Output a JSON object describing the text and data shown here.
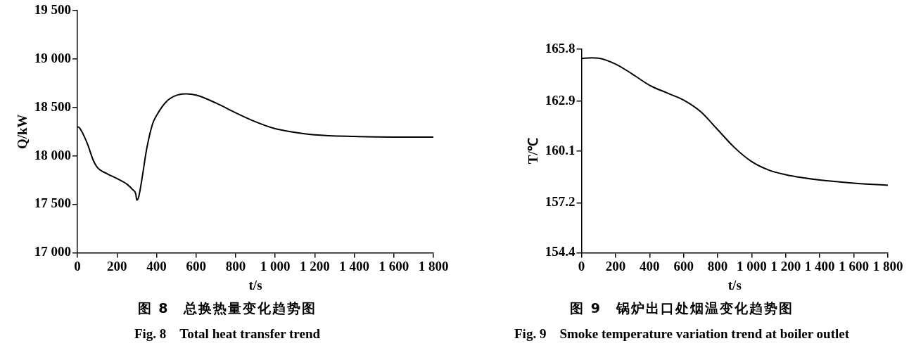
{
  "chart_data": [
    {
      "type": "line",
      "title": "图 8　总换热量变化趋势图",
      "subtitle": "Fig. 8　Total heat transfer trend",
      "xlabel": "t/s",
      "ylabel": "Q/kW",
      "x": [
        0,
        10,
        50,
        80,
        100,
        150,
        200,
        250,
        280,
        295,
        300,
        310,
        330,
        350,
        380,
        400,
        450,
        500,
        550,
        600,
        700,
        800,
        900,
        1000,
        1100,
        1200,
        1400,
        1600,
        1800
      ],
      "series": [
        {
          "color": "#000000",
          "values": [
            18300,
            18290,
            18127,
            17954,
            17882,
            17815,
            17766,
            17708,
            17650,
            17607,
            17543,
            17578,
            17810,
            18070,
            18330,
            18416,
            18560,
            18624,
            18639,
            18627,
            18546,
            18445,
            18352,
            18280,
            18243,
            18217,
            18200,
            18194,
            18194
          ]
        }
      ],
      "xlim": [
        0,
        1800
      ],
      "xticks": [
        0,
        200,
        400,
        600,
        800,
        {
          "value": 1000,
          "label": "1 000"
        },
        {
          "value": 1200,
          "label": "1 200"
        },
        {
          "value": 1400,
          "label": "1 400"
        },
        {
          "value": 1600,
          "label": "1 600"
        },
        {
          "value": 1800,
          "label": "1 800"
        }
      ],
      "ylim": [
        17000,
        19500
      ],
      "yticks": [
        {
          "value": 17000,
          "label": "17 000"
        },
        {
          "value": 17500,
          "label": "17 500"
        },
        {
          "value": 18000,
          "label": "18 000"
        },
        {
          "value": 18500,
          "label": "18 500"
        },
        {
          "value": 19000,
          "label": "19 000"
        },
        {
          "value": 19500,
          "label": "19 500"
        }
      ],
      "grid": false,
      "legend": false,
      "marker": "none",
      "line_style": "solid"
    },
    {
      "type": "line",
      "title": "图 9　锅炉出口处烟温变化趋势图",
      "subtitle": "Fig. 9　Smoke temperature variation trend at boiler outlet",
      "xlabel": "t/s",
      "ylabel": "T/℃",
      "x": [
        0,
        60,
        100,
        200,
        300,
        400,
        500,
        600,
        700,
        800,
        900,
        1000,
        1100,
        1200,
        1300,
        1400,
        1600,
        1800
      ],
      "series": [
        {
          "color": "#000000",
          "values": [
            165.29,
            165.32,
            165.3,
            164.97,
            164.4,
            163.78,
            163.36,
            162.95,
            162.3,
            161.29,
            160.28,
            159.5,
            159.03,
            158.77,
            158.6,
            158.47,
            158.3,
            158.18
          ]
        }
      ],
      "xlim": [
        0,
        1800
      ],
      "xticks": [
        0,
        200,
        400,
        600,
        800,
        {
          "value": 1000,
          "label": "1 000"
        },
        {
          "value": 1200,
          "label": "1 200"
        },
        {
          "value": 1400,
          "label": "1 400"
        },
        {
          "value": 1600,
          "label": "1 600"
        },
        {
          "value": 1800,
          "label": "1 800"
        }
      ],
      "ylim": [
        154.4,
        165.8
      ],
      "yticks": [
        154.4,
        157.2,
        160.1,
        162.9,
        165.8
      ],
      "grid": false,
      "legend": false,
      "marker": "none",
      "line_style": "solid"
    }
  ]
}
